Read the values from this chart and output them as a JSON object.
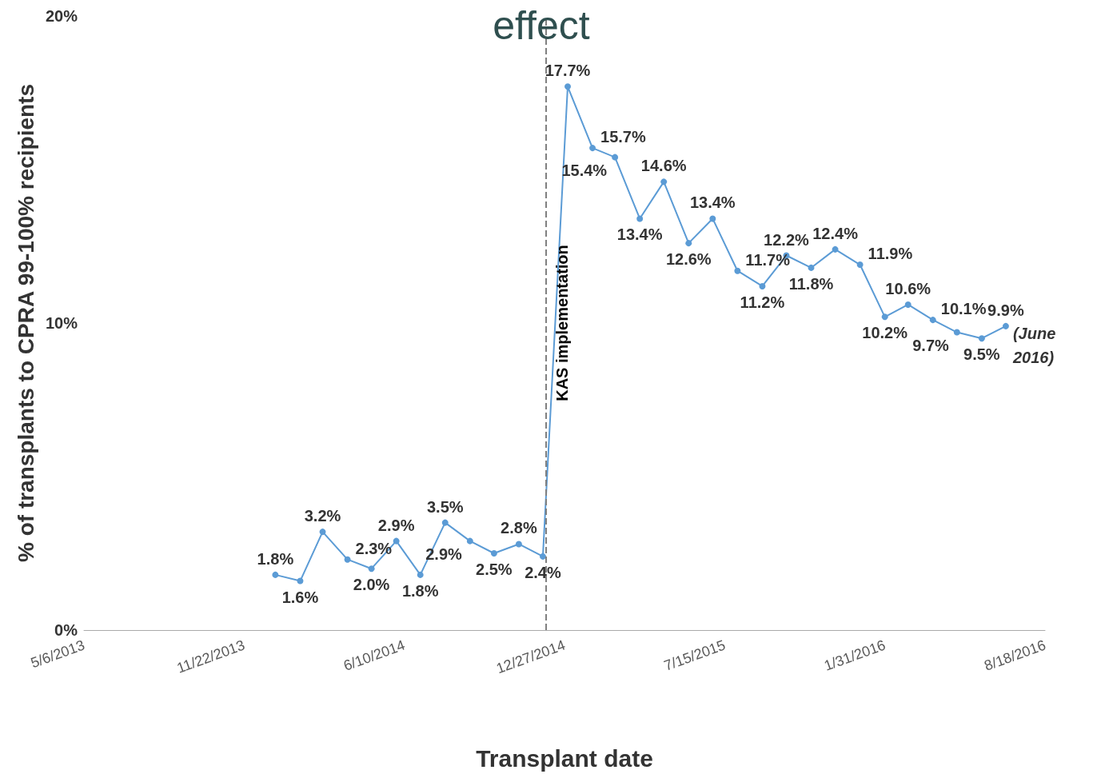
{
  "chart_data": {
    "type": "line",
    "title": "effect",
    "xlabel": "Transplant date",
    "ylabel": "% of transplants to CPRA 99-100% recipients",
    "x": [
      "2013-12-31",
      "2014-01-31",
      "2014-02-28",
      "2014-03-31",
      "2014-04-30",
      "2014-05-31",
      "2014-06-30",
      "2014-07-31",
      "2014-08-31",
      "2014-09-30",
      "2014-10-31",
      "2014-11-30",
      "2014-12-31",
      "2015-01-31",
      "2015-02-28",
      "2015-03-31",
      "2015-04-30",
      "2015-05-31",
      "2015-06-30",
      "2015-07-31",
      "2015-08-31",
      "2015-09-30",
      "2015-10-31",
      "2015-11-30",
      "2015-12-31",
      "2016-01-31",
      "2016-02-29",
      "2016-03-31",
      "2016-04-30",
      "2016-05-31",
      "2016-06-30"
    ],
    "series": [
      {
        "color": "#5b9bd5",
        "values": [
          1.8,
          1.6,
          3.2,
          2.3,
          2.0,
          2.9,
          1.8,
          3.5,
          2.9,
          2.5,
          2.8,
          2.4,
          17.7,
          15.7,
          15.4,
          13.4,
          14.6,
          12.6,
          13.4,
          11.7,
          11.2,
          12.2,
          11.8,
          12.4,
          11.9,
          10.2,
          10.6,
          10.1,
          9.7,
          9.5,
          9.9
        ],
        "value_labels": [
          "1.8%",
          "1.6%",
          "3.2%",
          "2.3%",
          "2.0%",
          "2.9%",
          "1.8%",
          "3.5%",
          "2.9%",
          "2.5%",
          "2.8%",
          "2.4%",
          "17.7%",
          "15.7%",
          "15.4%",
          "13.4%",
          "14.6%",
          "12.6%",
          "13.4%",
          "11.7%",
          "11.2%",
          "12.2%",
          "11.8%",
          "12.4%",
          "11.9%",
          "10.2%",
          "10.6%",
          "10.1%",
          "9.7%",
          "9.5%",
          "9.9%"
        ]
      }
    ],
    "xlim": [
      "2013-05-06",
      "2016-08-18"
    ],
    "xticks": [
      {
        "value": "2013-05-06",
        "label": "5/6/2013"
      },
      {
        "value": "2013-11-22",
        "label": "11/22/2013"
      },
      {
        "value": "2014-06-10",
        "label": "6/10/2014"
      },
      {
        "value": "2014-12-27",
        "label": "12/27/2014"
      },
      {
        "value": "2015-07-15",
        "label": "7/15/2015"
      },
      {
        "value": "2016-01-31",
        "label": "1/31/2016"
      },
      {
        "value": "2016-08-18",
        "label": "8/18/2016"
      }
    ],
    "ylim": [
      0,
      20
    ],
    "yticks": [
      {
        "value": 0,
        "label": "0%"
      },
      {
        "value": 10,
        "label": "10%"
      },
      {
        "value": 20,
        "label": "20%"
      }
    ],
    "ref_lines": [
      {
        "axis": "x",
        "value": "2014-12-04",
        "label": "KAS implementation",
        "color": "#808080",
        "line_style": "dashed"
      }
    ],
    "annotations": [
      {
        "text": "(June 2016)",
        "x": "2016-06-30",
        "y": 9.9
      }
    ],
    "marker": "circle",
    "line_style": "solid",
    "grid": false
  }
}
